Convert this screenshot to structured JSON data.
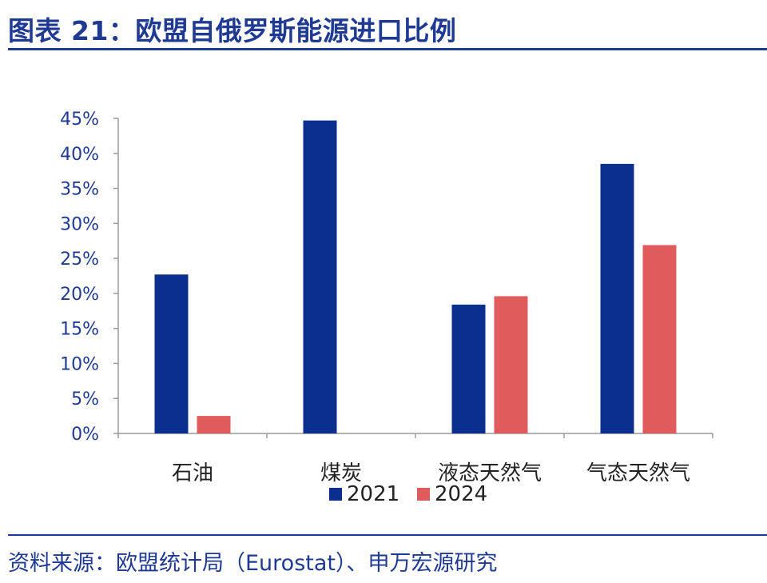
{
  "header": {
    "title": "图表 21：欧盟自俄罗斯能源进口比例"
  },
  "footer": {
    "source": "资料来源：欧盟统计局（Eurostat）、申万宏源研究"
  },
  "chart_data": {
    "type": "bar",
    "categories": [
      "石油",
      "煤炭",
      "液态天然气",
      "气态天然气"
    ],
    "series": [
      {
        "name": "2021",
        "color": "#0a2f8f",
        "values": [
          22.7,
          44.7,
          18.4,
          38.5
        ]
      },
      {
        "name": "2024",
        "color": "#e05b5b",
        "values": [
          2.5,
          null,
          19.6,
          26.9
        ]
      }
    ],
    "yticks": [
      "0%",
      "5%",
      "10%",
      "15%",
      "20%",
      "25%",
      "30%",
      "35%",
      "40%",
      "45%"
    ],
    "ylim": [
      0,
      45
    ],
    "grid": false,
    "legend": "bottom-center"
  }
}
